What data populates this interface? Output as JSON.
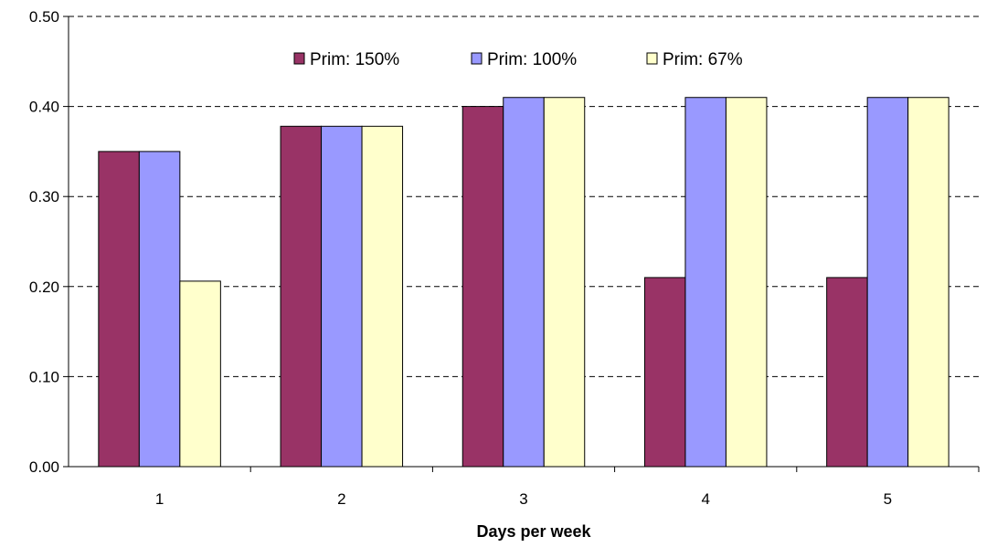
{
  "chart_data": {
    "type": "bar",
    "title": "",
    "xlabel": "Days per week",
    "ylabel": "",
    "categories": [
      "1",
      "2",
      "3",
      "4",
      "5"
    ],
    "ylim": [
      0,
      0.5
    ],
    "yticks": [
      "0.00",
      "0.10",
      "0.20",
      "0.30",
      "0.40",
      "0.50"
    ],
    "grid": true,
    "legend_placement": "top-center",
    "series": [
      {
        "name": "Prim: 150%",
        "color": "#993366",
        "values": [
          0.35,
          0.378,
          0.4,
          0.21,
          0.21
        ]
      },
      {
        "name": "Prim: 100%",
        "color": "#9999FF",
        "values": [
          0.35,
          0.378,
          0.41,
          0.41,
          0.41
        ]
      },
      {
        "name": "Prim: 67%",
        "color": "#FFFFCC",
        "values": [
          0.206,
          0.378,
          0.41,
          0.41,
          0.41
        ]
      }
    ]
  }
}
